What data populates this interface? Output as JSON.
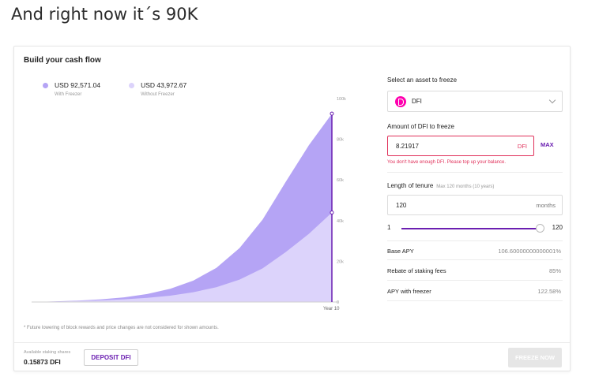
{
  "headline": "And right now it´s 90K",
  "card": {
    "title": "Build your cash flow",
    "legend": [
      {
        "value": "USD 92,571.04",
        "label": "With Freezer",
        "color": "#b5a4f5"
      },
      {
        "value": "USD 43,972.67",
        "label": "Without Freezer",
        "color": "#dcd3fb"
      }
    ],
    "footnote": "* Future lowering of block rewards and price changes are not considered for shown amounts."
  },
  "chart_data": {
    "type": "area",
    "y_ticks": [
      "100k",
      "80k",
      "60k",
      "40k",
      "20k",
      "0"
    ],
    "ylim": [
      0,
      100000
    ],
    "x_label": "Year 10",
    "series": [
      {
        "name": "With Freezer",
        "color": "#b5a4f5",
        "values": [
          0,
          300,
          700,
          1300,
          2300,
          3900,
          6500,
          10500,
          16800,
          26500,
          40500,
          59000,
          77000,
          92571
        ]
      },
      {
        "name": "Without Freezer",
        "color": "#dcd3fb",
        "values": [
          0,
          200,
          450,
          800,
          1300,
          2000,
          3100,
          4800,
          7300,
          11000,
          16500,
          24500,
          33500,
          43972
        ]
      }
    ]
  },
  "panel": {
    "asset_label": "Select an asset to freeze",
    "asset_value": "DFI",
    "amount_label": "Amount of DFI to freeze",
    "amount_value": "8.21917",
    "amount_unit": "DFI",
    "max_label": "MAX",
    "error": "You don't have enough DFI. Please top up your balance.",
    "tenure_label": "Length of tenure",
    "tenure_hint": "Max 120 months (10 years)",
    "tenure_value": "120",
    "tenure_unit": "months",
    "slider_min": "1",
    "slider_max": "120",
    "stats": [
      {
        "key": "Base APY",
        "value": "106.60000000000001%"
      },
      {
        "key": "Rebate of staking fees",
        "value": "85%"
      },
      {
        "key": "APY with freezer",
        "value": "122.58%"
      }
    ]
  },
  "bottom": {
    "staking_label": "Available staking shares",
    "staking_value": "0.15873 DFI",
    "deposit_label": "DEPOSIT DFI",
    "freeze_label": "FREEZE NOW"
  }
}
